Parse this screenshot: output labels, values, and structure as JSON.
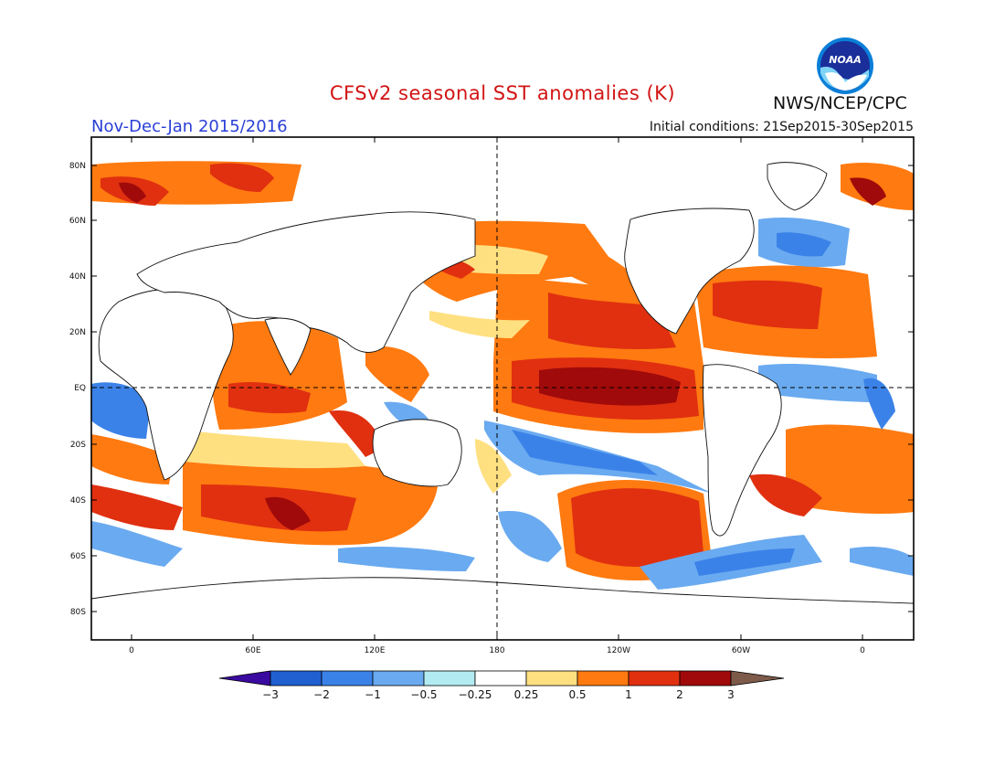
{
  "header": {
    "title": "CFSv2 seasonal SST anomalies (K)",
    "organization": "NWS/NCEP/CPC",
    "logo_text": "NOAA",
    "period": "Nov-Dec-Jan 2015/2016",
    "initial_conditions": "Initial conditions: 21Sep2015-30Sep2015"
  },
  "map": {
    "lat_labels": [
      "80N",
      "60N",
      "40N",
      "20N",
      "EQ",
      "20S",
      "40S",
      "60S",
      "80S"
    ],
    "lon_labels": [
      "0",
      "60E",
      "120E",
      "180",
      "120W",
      "60W",
      "0"
    ],
    "reference_lines": [
      "equator",
      "dateline"
    ]
  },
  "colorbar": {
    "labels": [
      "-3",
      "-2",
      "-1",
      "-0.5",
      "-0.25",
      "0.25",
      "0.5",
      "1",
      "2",
      "3"
    ],
    "colors": {
      "below_-3": "#3a0aa0",
      "-3_-2": "#1f5fd0",
      "-2_-1": "#3b82e8",
      "-1_-0.5": "#6aaaf0",
      "-0.5_-0.25": "#b2ecf2",
      "-0.25_0.25": "#ffffff",
      "0.25_0.5": "#ffe081",
      "0.5_1": "#ff7a10",
      "1_2": "#e03010",
      "2_3": "#a00a0a",
      "above_3": "#7d5a4a"
    }
  }
}
